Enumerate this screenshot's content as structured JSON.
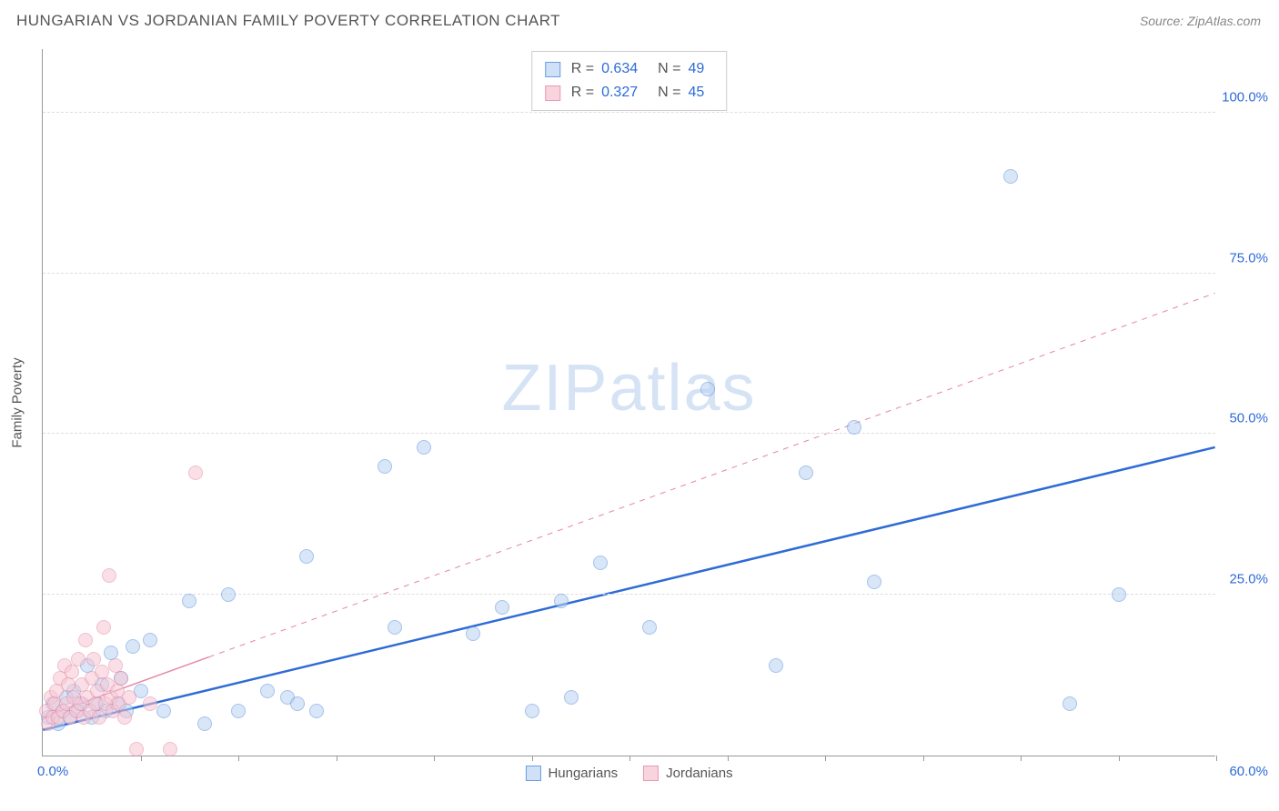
{
  "header": {
    "title": "HUNGARIAN VS JORDANIAN FAMILY POVERTY CORRELATION CHART",
    "source_prefix": "Source: ",
    "source": "ZipAtlas.com"
  },
  "watermark": {
    "bold": "ZIP",
    "light": "atlas"
  },
  "chart": {
    "type": "scatter",
    "y_axis_label": "Family Poverty",
    "x_range": [
      0,
      60
    ],
    "y_range": [
      0,
      110
    ],
    "x_tick_step": 5,
    "x_origin_label": "0.0%",
    "x_max_label": "60.0%",
    "y_gridlines": [
      25,
      50,
      75,
      100
    ],
    "y_tick_labels": [
      "25.0%",
      "50.0%",
      "75.0%",
      "100.0%"
    ],
    "grid_color": "#dddddd",
    "axis_color": "#999999",
    "label_color": "#2e6bd6",
    "point_radius": 8,
    "point_opacity": 0.55,
    "series": [
      {
        "name": "Hungarians",
        "fill": "#b9d3f2",
        "stroke": "#5a93de",
        "swatch_fill": "#cfe0f7",
        "swatch_stroke": "#6a9ee3",
        "R": "0.634",
        "N": "49",
        "trend": {
          "x1": 0,
          "y1": 4,
          "x2": 60,
          "y2": 48,
          "solid_until_x": 60,
          "stroke": "#2e6bd6",
          "width": 2.5
        },
        "points": [
          [
            0.3,
            6
          ],
          [
            0.5,
            8
          ],
          [
            0.8,
            5
          ],
          [
            1.0,
            7
          ],
          [
            1.2,
            9
          ],
          [
            1.4,
            6
          ],
          [
            1.6,
            10
          ],
          [
            1.8,
            7
          ],
          [
            2.0,
            8
          ],
          [
            2.3,
            14
          ],
          [
            2.5,
            6
          ],
          [
            2.8,
            8
          ],
          [
            3.0,
            11
          ],
          [
            3.2,
            7
          ],
          [
            3.5,
            16
          ],
          [
            3.8,
            8
          ],
          [
            4.0,
            12
          ],
          [
            4.3,
            7
          ],
          [
            4.6,
            17
          ],
          [
            5.0,
            10
          ],
          [
            5.5,
            18
          ],
          [
            6.2,
            7
          ],
          [
            7.5,
            24
          ],
          [
            8.3,
            5
          ],
          [
            9.5,
            25
          ],
          [
            10.0,
            7
          ],
          [
            11.5,
            10
          ],
          [
            12.5,
            9
          ],
          [
            13.0,
            8
          ],
          [
            13.5,
            31
          ],
          [
            14.0,
            7
          ],
          [
            17.5,
            45
          ],
          [
            18.0,
            20
          ],
          [
            19.5,
            48
          ],
          [
            22.0,
            19
          ],
          [
            23.5,
            23
          ],
          [
            25.0,
            7
          ],
          [
            26.5,
            24
          ],
          [
            27.0,
            9
          ],
          [
            28.5,
            30
          ],
          [
            31.0,
            20
          ],
          [
            34.0,
            57
          ],
          [
            37.5,
            14
          ],
          [
            39.0,
            44
          ],
          [
            41.5,
            51
          ],
          [
            42.5,
            27
          ],
          [
            49.5,
            90
          ],
          [
            52.5,
            8
          ],
          [
            55.0,
            25
          ]
        ]
      },
      {
        "name": "Jordanians",
        "fill": "#f6c6d4",
        "stroke": "#e68aa6",
        "swatch_fill": "#f8d4df",
        "swatch_stroke": "#e99ab2",
        "R": "0.327",
        "N": "45",
        "trend": {
          "x1": 0,
          "y1": 6,
          "x2": 60,
          "y2": 72,
          "solid_until_x": 8.5,
          "stroke": "#e68aa6",
          "width": 1.5
        },
        "points": [
          [
            0.2,
            7
          ],
          [
            0.3,
            5
          ],
          [
            0.4,
            9
          ],
          [
            0.5,
            6
          ],
          [
            0.6,
            8
          ],
          [
            0.7,
            10
          ],
          [
            0.8,
            6
          ],
          [
            0.9,
            12
          ],
          [
            1.0,
            7
          ],
          [
            1.1,
            14
          ],
          [
            1.2,
            8
          ],
          [
            1.3,
            11
          ],
          [
            1.4,
            6
          ],
          [
            1.5,
            13
          ],
          [
            1.6,
            9
          ],
          [
            1.7,
            7
          ],
          [
            1.8,
            15
          ],
          [
            1.9,
            8
          ],
          [
            2.0,
            11
          ],
          [
            2.1,
            6
          ],
          [
            2.2,
            18
          ],
          [
            2.3,
            9
          ],
          [
            2.4,
            7
          ],
          [
            2.5,
            12
          ],
          [
            2.6,
            15
          ],
          [
            2.7,
            8
          ],
          [
            2.8,
            10
          ],
          [
            2.9,
            6
          ],
          [
            3.0,
            13
          ],
          [
            3.1,
            20
          ],
          [
            3.2,
            8
          ],
          [
            3.3,
            11
          ],
          [
            3.4,
            28
          ],
          [
            3.5,
            9
          ],
          [
            3.6,
            7
          ],
          [
            3.7,
            14
          ],
          [
            3.8,
            10
          ],
          [
            3.9,
            8
          ],
          [
            4.0,
            12
          ],
          [
            4.2,
            6
          ],
          [
            4.4,
            9
          ],
          [
            4.8,
            1
          ],
          [
            5.5,
            8
          ],
          [
            6.5,
            1
          ],
          [
            7.8,
            44
          ]
        ]
      }
    ],
    "bottom_legend": [
      "Hungarians",
      "Jordanians"
    ]
  }
}
